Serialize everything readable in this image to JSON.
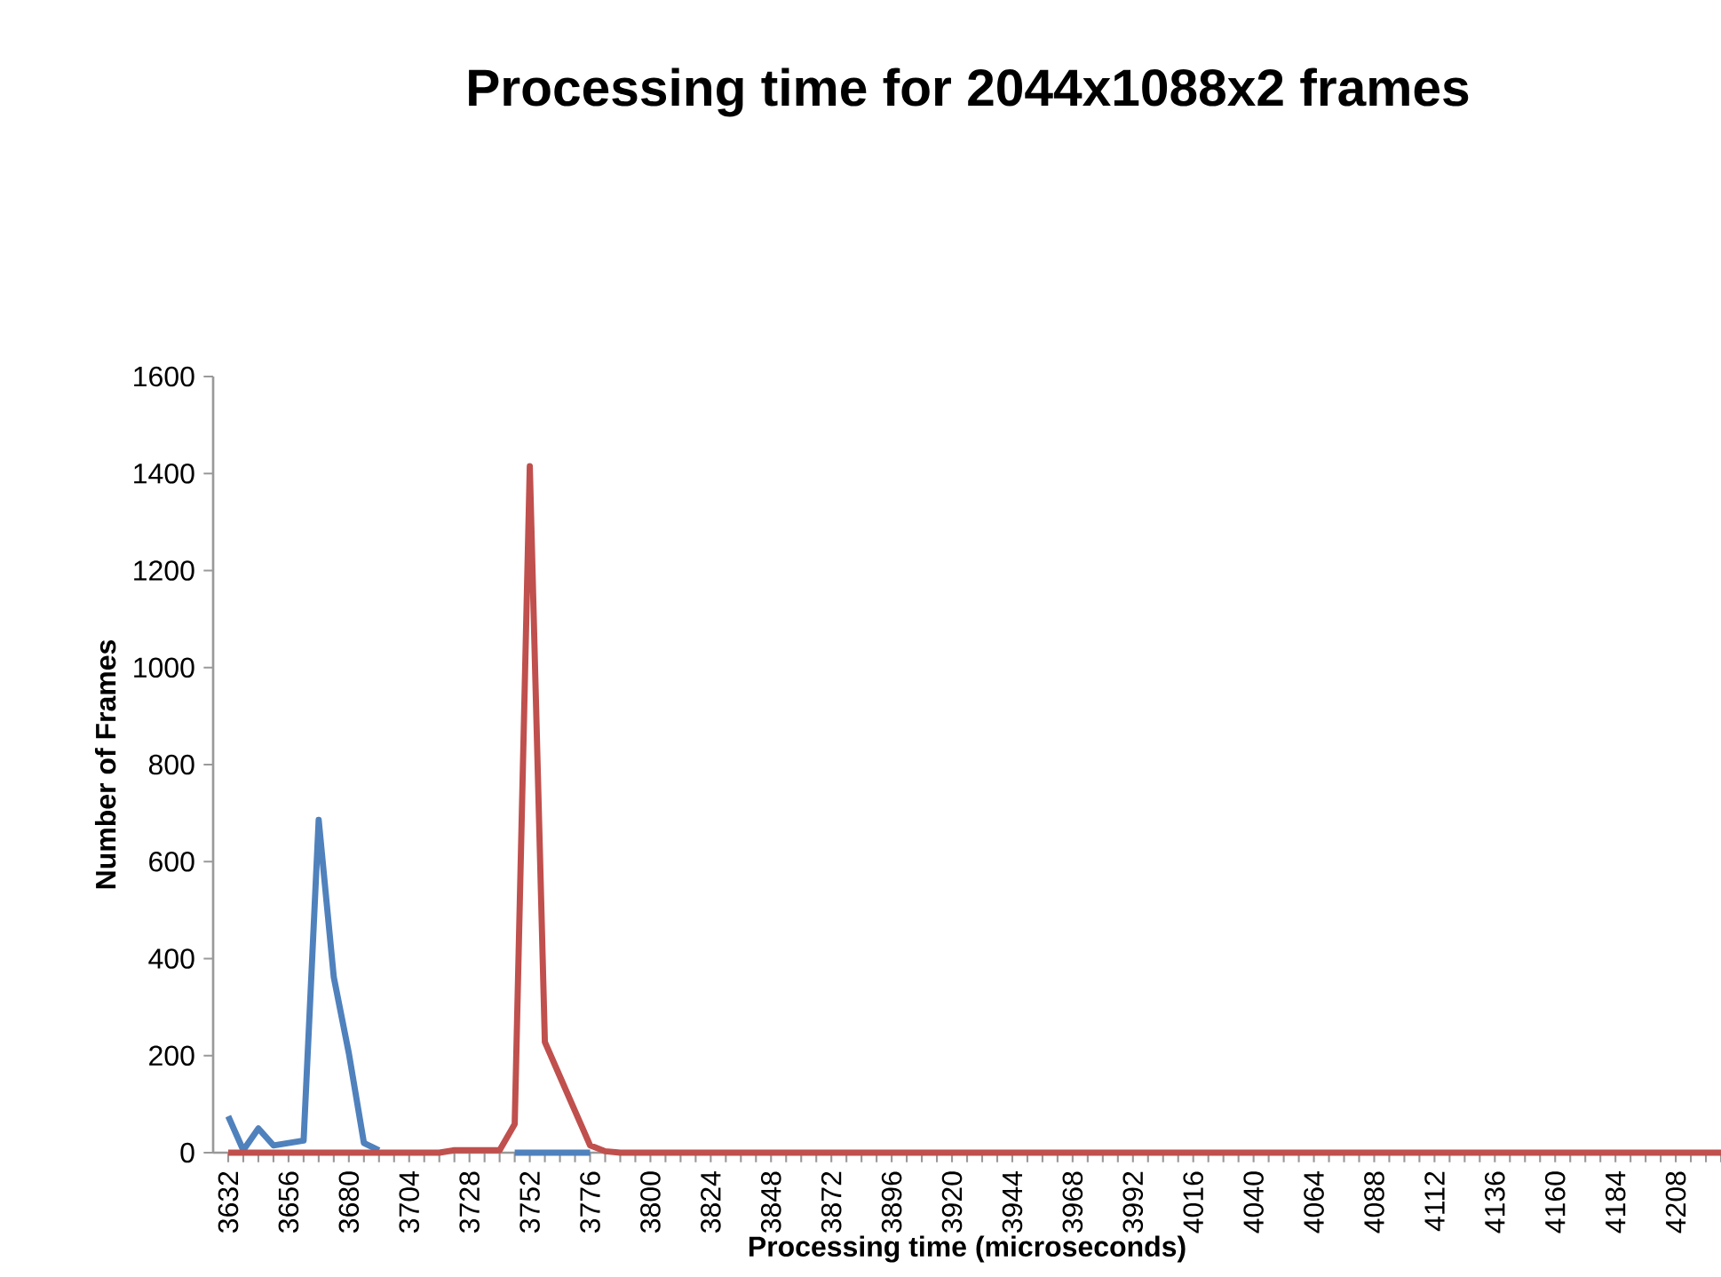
{
  "chart_data": {
    "type": "line",
    "title": "Processing time for 2044x1088x2 frames",
    "xlabel": "Processing time (microseconds)",
    "ylabel": "Number of Frames",
    "categories": [
      "3632",
      null,
      null,
      null,
      "3656",
      null,
      null,
      null,
      "3680",
      null,
      null,
      null,
      "3704",
      null,
      null,
      null,
      "3728",
      null,
      null,
      null,
      "3752",
      null,
      null,
      null,
      "3776",
      null,
      null,
      null,
      "3800",
      null,
      null,
      null,
      "3824",
      null,
      null,
      null,
      "3848",
      null,
      null,
      null,
      "3872",
      null,
      null,
      null,
      "3896",
      null,
      null,
      null,
      "3920",
      null,
      null,
      null,
      "3944",
      null,
      null,
      null,
      "3968",
      null,
      null,
      null,
      "3992",
      null,
      null,
      null,
      "4016",
      null,
      null,
      null,
      "4040",
      null,
      null,
      null,
      "4064",
      null,
      null,
      null,
      "4088",
      null,
      null,
      null,
      "4112",
      null,
      null,
      null,
      "4136",
      null,
      null,
      null,
      "4160",
      null,
      null,
      null,
      "4184",
      null,
      null,
      null,
      "4208",
      null,
      null,
      null
    ],
    "series": [
      {
        "color": "#4f81bd",
        "values": [
          75,
          5,
          50,
          15,
          20,
          25,
          686,
          362,
          205,
          20,
          5,
          null,
          null,
          null,
          null,
          null,
          null,
          null,
          null,
          0,
          0,
          0,
          0,
          0,
          0,
          null,
          null,
          null,
          null,
          null,
          null,
          null,
          null,
          null,
          null,
          null,
          null,
          null,
          null,
          null,
          null,
          null,
          null,
          null,
          null,
          null,
          null,
          null,
          null,
          null,
          null,
          null,
          null,
          null,
          null,
          null,
          null,
          null,
          null,
          null,
          null,
          null,
          null,
          null,
          null,
          null,
          null,
          null,
          null,
          null,
          null,
          null,
          null,
          null,
          null,
          null,
          null,
          null,
          null,
          null,
          null,
          null,
          null,
          null,
          null,
          null,
          null,
          null,
          null,
          null,
          null,
          null,
          null,
          null,
          null,
          null,
          null,
          null,
          null,
          null
        ]
      },
      {
        "color": "#c0504d",
        "values": [
          0,
          0,
          0,
          0,
          0,
          0,
          0,
          0,
          0,
          0,
          0,
          0,
          0,
          0,
          0,
          5,
          5,
          5,
          5,
          59,
          1415,
          228,
          157,
          86,
          15,
          3,
          0,
          0,
          0,
          0,
          0,
          0,
          0,
          0,
          0,
          0,
          0,
          0,
          0,
          0,
          0,
          0,
          0,
          0,
          0,
          0,
          0,
          0,
          0,
          0,
          0,
          0,
          0,
          0,
          0,
          0,
          0,
          0,
          0,
          0,
          0,
          0,
          0,
          0,
          0,
          0,
          0,
          0,
          0,
          0,
          0,
          0,
          0,
          0,
          0,
          0,
          0,
          0,
          0,
          0,
          0,
          0,
          0,
          0,
          0,
          0,
          0,
          0,
          0,
          0,
          0,
          0,
          0,
          0,
          0,
          0,
          0,
          0,
          0,
          0
        ]
      }
    ],
    "ylim": [
      0,
      1600
    ],
    "yticks": [
      0,
      200,
      400,
      600,
      800,
      1000,
      1200,
      1400,
      1600
    ]
  }
}
